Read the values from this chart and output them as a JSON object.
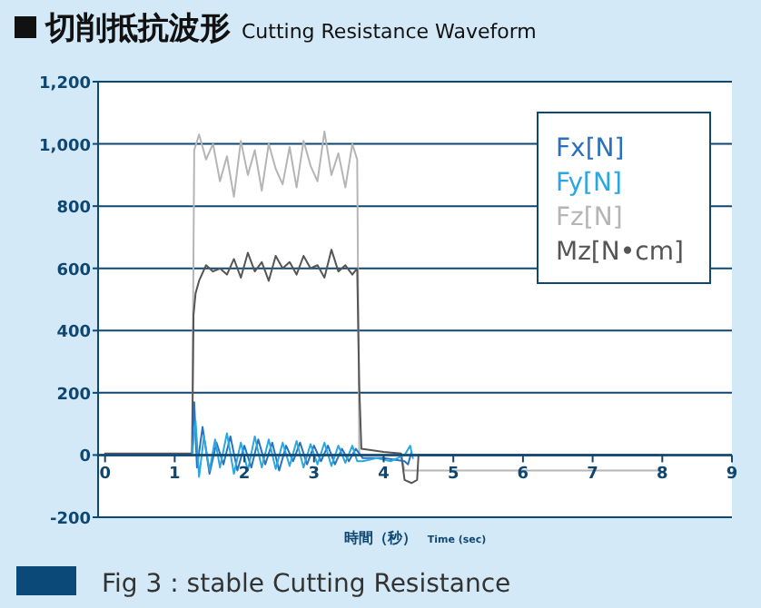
{
  "chart_data": {
    "type": "line",
    "title": "切削抵抗波形",
    "subtitle": "Cutting Resistance Waveform",
    "xlabel": "時間（秒）",
    "annotations": [
      "Time (sec)",
      "Fig 3 : stable Cutting Resistance"
    ],
    "xlim": [
      -0.1,
      9
    ],
    "xticks": [
      0,
      1,
      2,
      3,
      4,
      5,
      6,
      7,
      8,
      9
    ],
    "ylim": [
      -200,
      1200
    ],
    "yticks": [
      -200,
      0,
      200,
      400,
      600,
      800,
      {
        "value": 1000,
        "label": "1,000"
      },
      {
        "value": 1200,
        "label": "1,200"
      }
    ],
    "grid": "y",
    "legend": "top right",
    "marker": "none",
    "line_style": "solid",
    "series": [
      {
        "name": "Fz[N]",
        "color": "#b5b5b5",
        "x": [
          0,
          0.5,
          1.0,
          1.2,
          1.25,
          1.28,
          1.35,
          1.45,
          1.55,
          1.65,
          1.75,
          1.85,
          1.95,
          2.05,
          2.15,
          2.25,
          2.35,
          2.45,
          2.55,
          2.65,
          2.75,
          2.85,
          2.95,
          3.05,
          3.15,
          3.25,
          3.35,
          3.45,
          3.55,
          3.62,
          3.65,
          3.7,
          4.0,
          4.25,
          4.3,
          4.35,
          4.5,
          5,
          5.5,
          6,
          6.5,
          7,
          7.5,
          7.95
        ],
        "values": [
          0,
          0,
          0,
          0,
          0,
          980,
          1030,
          950,
          1000,
          880,
          960,
          830,
          1010,
          900,
          980,
          850,
          1000,
          920,
          870,
          990,
          860,
          1010,
          930,
          880,
          1040,
          900,
          970,
          860,
          1000,
          950,
          0,
          0,
          0,
          0,
          -50,
          -50,
          -50,
          -50,
          -50,
          -50,
          -50,
          -50,
          -50,
          -50
        ]
      },
      {
        "name": "Mz[N•cm]",
        "color": "#555555",
        "x": [
          0,
          0.5,
          1.0,
          1.25,
          1.27,
          1.3,
          1.35,
          1.45,
          1.55,
          1.65,
          1.75,
          1.85,
          1.95,
          2.05,
          2.15,
          2.25,
          2.35,
          2.45,
          2.55,
          2.65,
          2.75,
          2.85,
          2.95,
          3.05,
          3.15,
          3.25,
          3.35,
          3.45,
          3.55,
          3.62,
          3.65,
          3.68,
          4.0,
          4.25,
          4.3,
          4.4,
          4.48,
          4.5,
          5,
          5.5,
          6,
          6.5,
          7,
          7.5,
          7.95
        ],
        "values": [
          5,
          5,
          5,
          5,
          450,
          520,
          560,
          610,
          590,
          600,
          580,
          630,
          570,
          650,
          590,
          620,
          560,
          640,
          600,
          620,
          580,
          640,
          600,
          610,
          570,
          660,
          590,
          610,
          580,
          600,
          220,
          20,
          10,
          5,
          -80,
          -90,
          -80,
          0,
          0,
          0,
          0,
          0,
          0,
          0,
          0
        ]
      },
      {
        "name": "Fx[N]",
        "color": "#2a70c0",
        "x": [
          0,
          0.5,
          1.0,
          1.25,
          1.28,
          1.32,
          1.4,
          1.5,
          1.6,
          1.7,
          1.8,
          1.9,
          2.0,
          2.1,
          2.2,
          2.3,
          2.4,
          2.5,
          2.6,
          2.7,
          2.8,
          2.9,
          3.0,
          3.1,
          3.2,
          3.3,
          3.4,
          3.5,
          3.6,
          3.7,
          4.0,
          4.3,
          4.35,
          4.4
        ],
        "values": [
          0,
          0,
          0,
          0,
          170,
          -40,
          90,
          -60,
          40,
          -30,
          60,
          -50,
          30,
          -40,
          50,
          -30,
          40,
          -50,
          30,
          -20,
          40,
          -30,
          30,
          -20,
          30,
          -30,
          20,
          -20,
          20,
          -10,
          -10,
          -20,
          -30,
          10
        ]
      },
      {
        "name": "Fy[N]",
        "color": "#2aa7df",
        "x": [
          1.25,
          1.3,
          1.35,
          1.42,
          1.5,
          1.58,
          1.65,
          1.75,
          1.85,
          1.95,
          2.05,
          2.15,
          2.25,
          2.35,
          2.45,
          2.55,
          2.65,
          2.75,
          2.85,
          2.95,
          3.05,
          3.15,
          3.25,
          3.35,
          3.45,
          3.55,
          3.62,
          3.7,
          3.9,
          4.1,
          4.3,
          4.38,
          4.42
        ],
        "values": [
          0,
          110,
          -70,
          60,
          -50,
          50,
          -40,
          70,
          -60,
          40,
          -50,
          60,
          -40,
          50,
          -45,
          40,
          -35,
          45,
          -40,
          35,
          -30,
          40,
          -35,
          30,
          -25,
          30,
          -20,
          -20,
          -10,
          -20,
          0,
          30,
          -10
        ]
      }
    ]
  }
}
